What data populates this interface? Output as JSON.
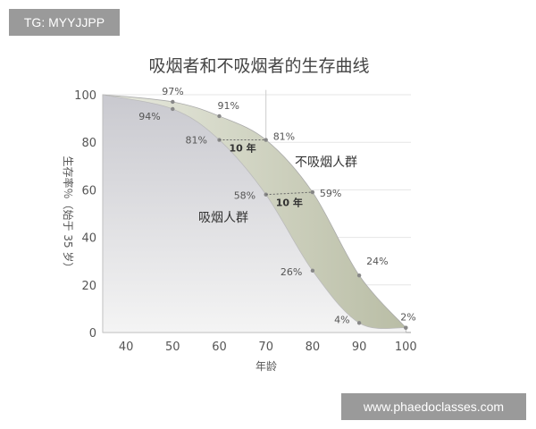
{
  "watermarks": {
    "top_left": "TG: MYYJJPP",
    "bottom_right": "www.phaedoclasses.com"
  },
  "chart_data": {
    "type": "area",
    "title": "吸烟者和不吸烟者的生存曲线",
    "xlabel": "年龄",
    "ylabel": "生存率％（始于 35 岁）",
    "xlim": [
      35,
      100
    ],
    "ylim": [
      0,
      100
    ],
    "xticks": [
      40,
      50,
      60,
      70,
      80,
      90,
      100
    ],
    "yticks": [
      0,
      20,
      40,
      60,
      80,
      100
    ],
    "grid": "horizontal",
    "series": [
      {
        "name": "不吸烟人群",
        "x": [
          35,
          50,
          60,
          70,
          80,
          90,
          100
        ],
        "values": [
          100,
          97,
          91,
          81,
          59,
          24,
          2
        ],
        "data_labels": [
          "",
          "97%",
          "91%",
          "81%",
          "59%",
          "24%",
          "2%"
        ],
        "color": "#c8cbb6"
      },
      {
        "name": "吸烟人群",
        "x": [
          35,
          50,
          60,
          70,
          80,
          90,
          100
        ],
        "values": [
          100,
          94,
          81,
          58,
          26,
          4,
          2
        ],
        "data_labels": [
          "",
          "94%",
          "81%",
          "58%",
          "26%",
          "4%",
          ""
        ],
        "color": "#d9d9dc"
      }
    ],
    "annotations": [
      {
        "text": "10 年",
        "from": [
          60,
          81
        ],
        "to": [
          70,
          81
        ]
      },
      {
        "text": "10 年",
        "from": [
          70,
          58
        ],
        "to": [
          80,
          59
        ]
      }
    ],
    "vertical_reference_x": 70
  }
}
